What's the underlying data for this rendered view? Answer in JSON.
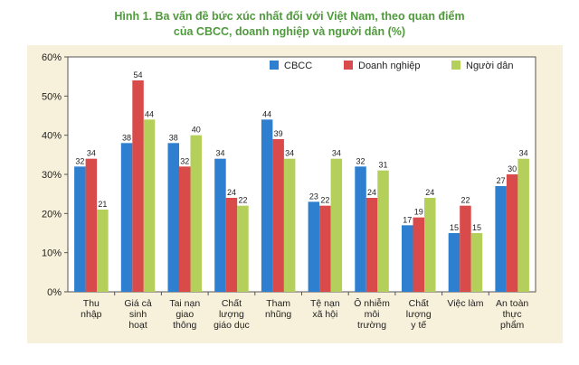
{
  "title_line1": "Hình 1. Ba vấn đề bức xúc nhất đối với Việt Nam, theo quan điểm",
  "title_line2": "của CBCC, doanh nghiệp và người dân (%)",
  "chart_data": {
    "type": "bar",
    "title": "Hình 1. Ba vấn đề bức xúc nhất đối với Việt Nam, theo quan điểm của CBCC, doanh nghiệp và người dân (%)",
    "categories": [
      [
        "Thu",
        "nhập"
      ],
      [
        "Giá cả",
        "sinh",
        "hoạt"
      ],
      [
        "Tai nạn",
        "giao",
        "thông"
      ],
      [
        "Chất",
        "lượng",
        "giáo dục"
      ],
      [
        "Tham",
        "nhũng"
      ],
      [
        "Tệ nạn",
        "xã hội"
      ],
      [
        "Ô nhiễm",
        "môi",
        "trường"
      ],
      [
        "Chất",
        "lượng",
        "y tế"
      ],
      [
        "Việc làm"
      ],
      [
        "An toàn",
        "thực",
        "phẩm"
      ]
    ],
    "series": [
      {
        "name": "CBCC",
        "color": "#2e7fcf",
        "values": [
          32,
          38,
          38,
          34,
          44,
          23,
          32,
          17,
          15,
          27
        ]
      },
      {
        "name": "Doanh nghiệp",
        "color": "#d94b4b",
        "values": [
          34,
          54,
          32,
          24,
          39,
          22,
          24,
          19,
          22,
          30
        ]
      },
      {
        "name": "Người dân",
        "color": "#b4cf5a",
        "values": [
          21,
          44,
          40,
          22,
          34,
          34,
          31,
          24,
          15,
          34
        ]
      }
    ],
    "yticks": [
      "0%",
      "10%",
      "20%",
      "30%",
      "40%",
      "50%",
      "60%"
    ],
    "ylim": [
      0,
      60
    ],
    "legend": "top-right",
    "grid": false
  }
}
